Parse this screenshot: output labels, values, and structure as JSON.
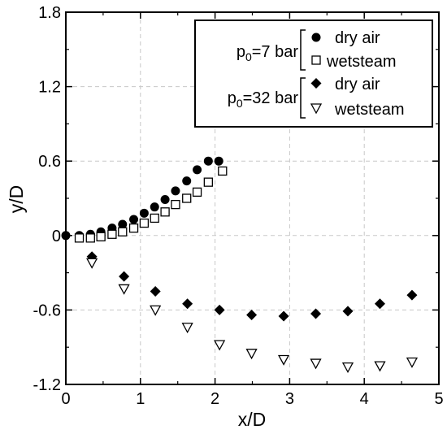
{
  "chart_data": {
    "type": "scatter",
    "xlabel": "x/D",
    "ylabel": "y/D",
    "xlim": [
      0,
      5
    ],
    "ylim": [
      -1.2,
      1.8
    ],
    "xticks": [
      "0",
      "1",
      "2",
      "3",
      "4",
      "5"
    ],
    "yticks": [
      "-1.2",
      "-0.6",
      "0",
      "0.6",
      "1.2",
      "1.8"
    ],
    "grid": true,
    "legend_position": "top-right",
    "legend_groups": [
      {
        "label_main": "p",
        "label_sub": "0",
        "label_rest": "=7 bar",
        "series": [
          0,
          1
        ]
      },
      {
        "label_main": "p",
        "label_sub": "0",
        "label_rest": "=32 bar",
        "series": [
          2,
          3
        ]
      }
    ],
    "series": [
      {
        "name": "dry air",
        "marker": "circle-filled",
        "x": [
          0.0,
          0.18,
          0.33,
          0.47,
          0.62,
          0.76,
          0.91,
          1.05,
          1.19,
          1.33,
          1.47,
          1.62,
          1.76,
          1.91,
          2.05
        ],
        "y": [
          0.0,
          0.0,
          0.01,
          0.03,
          0.06,
          0.09,
          0.13,
          0.18,
          0.23,
          0.29,
          0.36,
          0.44,
          0.53,
          0.6,
          0.6
        ]
      },
      {
        "name": "wetsteam",
        "marker": "square-open",
        "x": [
          0.18,
          0.33,
          0.47,
          0.62,
          0.76,
          0.91,
          1.05,
          1.19,
          1.33,
          1.47,
          1.62,
          1.76,
          1.91,
          2.1
        ],
        "y": [
          -0.02,
          -0.02,
          -0.01,
          0.01,
          0.03,
          0.06,
          0.1,
          0.14,
          0.19,
          0.25,
          0.3,
          0.35,
          0.43,
          0.52
        ]
      },
      {
        "name": "dry air",
        "marker": "diamond-filled",
        "x": [
          0.35,
          0.78,
          1.2,
          1.63,
          2.06,
          2.49,
          2.92,
          3.35,
          3.78,
          4.21,
          4.64
        ],
        "y": [
          -0.17,
          -0.33,
          -0.45,
          -0.55,
          -0.6,
          -0.64,
          -0.65,
          -0.63,
          -0.61,
          -0.55,
          -0.48
        ]
      },
      {
        "name": "wetsteam",
        "marker": "triangle-down-open",
        "x": [
          0.35,
          0.78,
          1.2,
          1.63,
          2.06,
          2.49,
          2.92,
          3.35,
          3.78,
          4.21,
          4.64
        ],
        "y": [
          -0.22,
          -0.43,
          -0.6,
          -0.74,
          -0.88,
          -0.95,
          -1.0,
          -1.03,
          -1.06,
          -1.05,
          -1.02
        ]
      }
    ]
  }
}
